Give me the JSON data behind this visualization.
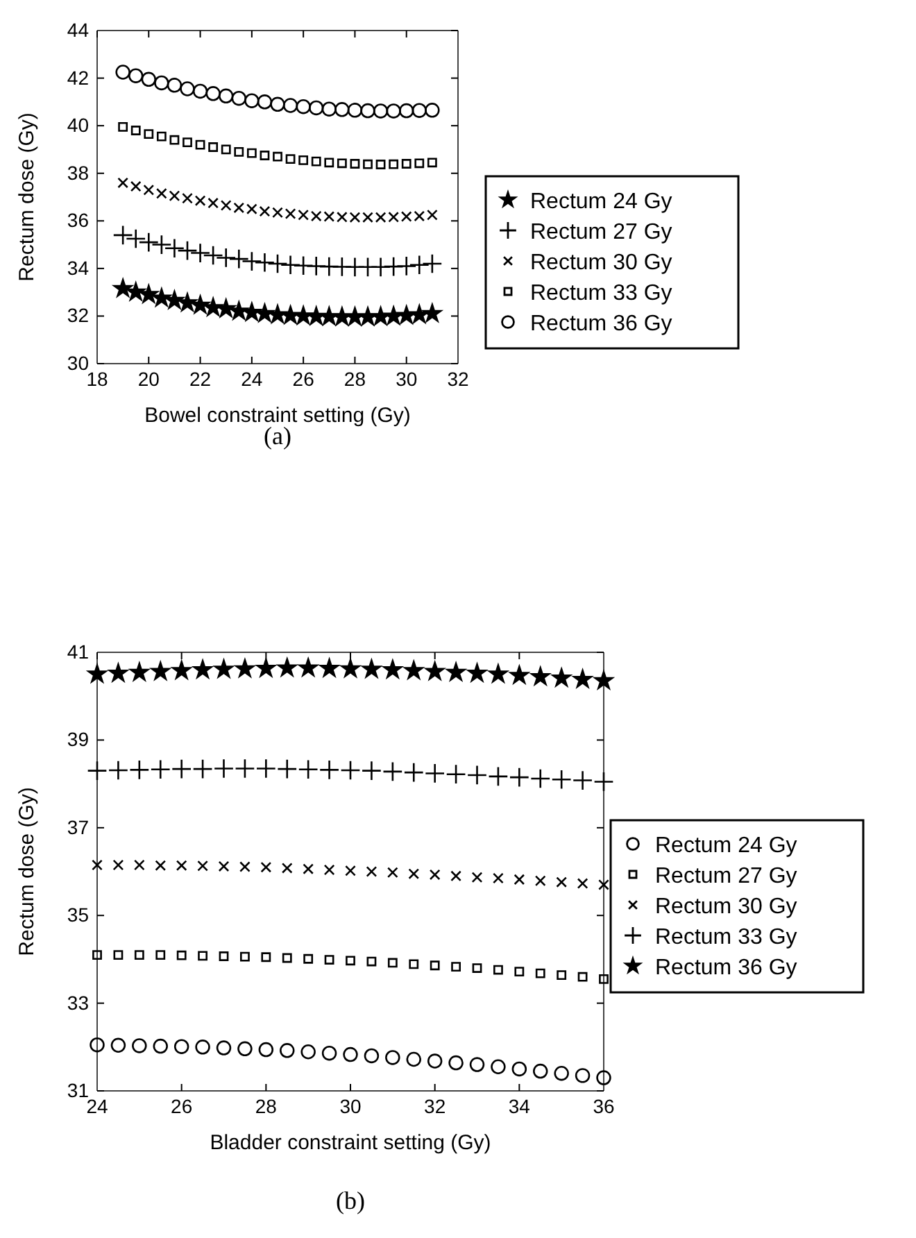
{
  "chart_data": [
    {
      "type": "scatter",
      "xlabel": "Bowel constraint setting (Gy)",
      "ylabel": "Rectum dose (Gy)",
      "annotations": [
        "(a)"
      ],
      "legend": "right",
      "grid": false,
      "x": [
        19,
        19.5,
        20,
        20.5,
        21,
        21.5,
        22,
        22.5,
        23,
        23.5,
        24,
        24.5,
        25,
        25.5,
        26,
        26.5,
        27,
        27.5,
        28,
        28.5,
        29,
        29.5,
        30,
        30.5,
        31
      ],
      "xlim": [
        18,
        32
      ],
      "xticks": [
        18,
        20,
        22,
        24,
        26,
        28,
        30,
        32
      ],
      "ylim": [
        30,
        44
      ],
      "yticks": [
        30,
        32,
        34,
        36,
        38,
        40,
        42,
        44
      ],
      "series": [
        {
          "name": "Rectum 24 Gy",
          "color": "#000000",
          "marker": "star",
          "values": [
            33.15,
            33.0,
            32.9,
            32.75,
            32.65,
            32.55,
            32.45,
            32.35,
            32.3,
            32.2,
            32.15,
            32.1,
            32.05,
            32.02,
            32.0,
            31.98,
            31.97,
            31.96,
            31.96,
            31.96,
            31.97,
            31.99,
            32.02,
            32.05,
            32.1
          ]
        },
        {
          "name": "Rectum 27 Gy",
          "color": "#000000",
          "marker": "plus",
          "values": [
            35.4,
            35.25,
            35.1,
            35.0,
            34.85,
            34.75,
            34.65,
            34.55,
            34.45,
            34.4,
            34.3,
            34.25,
            34.2,
            34.15,
            34.12,
            34.1,
            34.08,
            34.07,
            34.06,
            34.06,
            34.06,
            34.08,
            34.1,
            34.15,
            34.2
          ]
        },
        {
          "name": "Rectum 30 Gy",
          "color": "#000000",
          "marker": "cross",
          "values": [
            37.6,
            37.45,
            37.3,
            37.15,
            37.05,
            36.95,
            36.85,
            36.75,
            36.65,
            36.55,
            36.5,
            36.4,
            36.35,
            36.3,
            36.25,
            36.2,
            36.18,
            36.16,
            36.15,
            36.15,
            36.15,
            36.16,
            36.18,
            36.2,
            36.25
          ]
        },
        {
          "name": "Rectum 33 Gy",
          "color": "#000000",
          "marker": "square",
          "values": [
            39.95,
            39.8,
            39.65,
            39.55,
            39.4,
            39.3,
            39.2,
            39.1,
            39.0,
            38.9,
            38.85,
            38.75,
            38.7,
            38.6,
            38.55,
            38.5,
            38.45,
            38.42,
            38.4,
            38.38,
            38.37,
            38.38,
            38.4,
            38.42,
            38.45
          ]
        },
        {
          "name": "Rectum 36 Gy",
          "color": "#000000",
          "marker": "circle",
          "values": [
            42.25,
            42.1,
            41.95,
            41.8,
            41.7,
            41.55,
            41.45,
            41.35,
            41.25,
            41.15,
            41.05,
            41.0,
            40.9,
            40.85,
            40.8,
            40.75,
            40.7,
            40.68,
            40.65,
            40.63,
            40.62,
            40.62,
            40.63,
            40.64,
            40.65
          ]
        }
      ]
    },
    {
      "type": "scatter",
      "xlabel": "Bladder constraint setting (Gy)",
      "ylabel": "Rectum dose (Gy)",
      "annotations": [
        "(b)"
      ],
      "legend": "right",
      "grid": false,
      "x": [
        24,
        24.5,
        25,
        25.5,
        26,
        26.5,
        27,
        27.5,
        28,
        28.5,
        29,
        29.5,
        30,
        30.5,
        31,
        31.5,
        32,
        32.5,
        33,
        33.5,
        34,
        34.5,
        35,
        35.5,
        36
      ],
      "xlim": [
        24,
        36
      ],
      "xticks": [
        24,
        26,
        28,
        30,
        32,
        34,
        36
      ],
      "ylim": [
        31,
        41
      ],
      "yticks": [
        31,
        33,
        35,
        37,
        39,
        41
      ],
      "series": [
        {
          "name": "Rectum 24 Gy",
          "color": "#000000",
          "marker": "circle",
          "values": [
            32.05,
            32.04,
            32.03,
            32.02,
            32.01,
            32.0,
            31.98,
            31.96,
            31.94,
            31.92,
            31.89,
            31.86,
            31.83,
            31.8,
            31.76,
            31.72,
            31.68,
            31.64,
            31.6,
            31.55,
            31.5,
            31.45,
            31.4,
            31.35,
            31.3
          ]
        },
        {
          "name": "Rectum 27 Gy",
          "color": "#000000",
          "marker": "square",
          "values": [
            34.1,
            34.1,
            34.1,
            34.1,
            34.09,
            34.08,
            34.07,
            34.06,
            34.05,
            34.03,
            34.01,
            33.99,
            33.97,
            33.95,
            33.92,
            33.89,
            33.86,
            33.83,
            33.8,
            33.76,
            33.72,
            33.68,
            33.64,
            33.6,
            33.55
          ]
        },
        {
          "name": "Rectum 30 Gy",
          "color": "#000000",
          "marker": "cross",
          "values": [
            36.15,
            36.15,
            36.15,
            36.14,
            36.14,
            36.13,
            36.12,
            36.11,
            36.1,
            36.08,
            36.06,
            36.04,
            36.02,
            36.0,
            35.98,
            35.95,
            35.93,
            35.9,
            35.87,
            35.85,
            35.82,
            35.79,
            35.76,
            35.73,
            35.7
          ]
        },
        {
          "name": "Rectum 33 Gy",
          "color": "#000000",
          "marker": "plus",
          "values": [
            38.3,
            38.31,
            38.32,
            38.33,
            38.34,
            38.34,
            38.35,
            38.35,
            38.35,
            38.34,
            38.33,
            38.32,
            38.31,
            38.3,
            38.28,
            38.26,
            38.24,
            38.22,
            38.2,
            38.17,
            38.15,
            38.12,
            38.1,
            38.08,
            38.05
          ]
        },
        {
          "name": "Rectum 36 Gy",
          "color": "#000000",
          "marker": "star",
          "values": [
            40.5,
            40.52,
            40.54,
            40.56,
            40.58,
            40.6,
            40.61,
            40.62,
            40.63,
            40.64,
            40.64,
            40.63,
            40.62,
            40.61,
            40.6,
            40.58,
            40.56,
            40.54,
            40.52,
            40.5,
            40.47,
            40.44,
            40.41,
            40.38,
            40.35
          ]
        }
      ]
    }
  ]
}
